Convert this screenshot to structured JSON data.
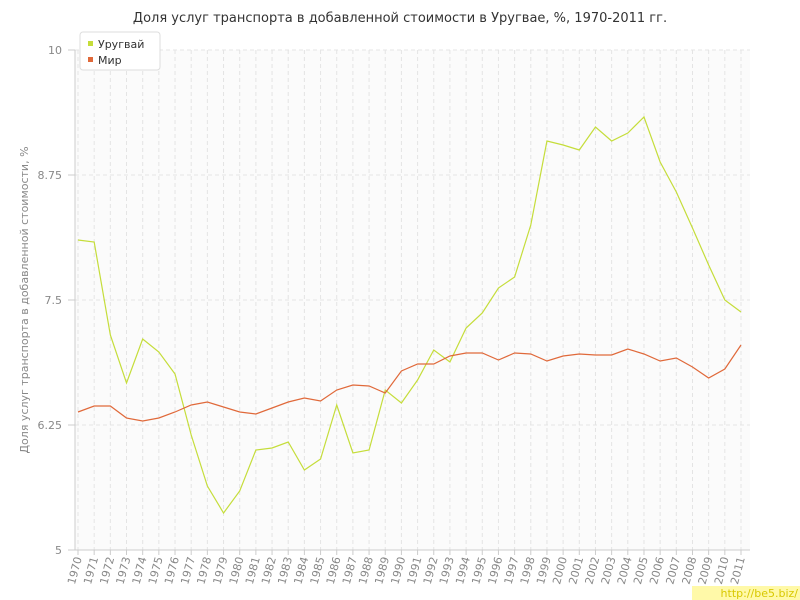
{
  "chart_data": {
    "type": "line",
    "title": "Доля услуг транспорта в добавленной стоимости в Уругвае, %, 1970-2011 гг.",
    "y_label": "Доля услуг транспорта в добавленной стоимости, %",
    "watermark": "http://be5.biz/",
    "categories": [
      "1970",
      "1971",
      "1972",
      "1973",
      "1974",
      "1975",
      "1976",
      "1977",
      "1978",
      "1979",
      "1980",
      "1981",
      "1982",
      "1983",
      "1984",
      "1985",
      "1986",
      "1987",
      "1988",
      "1989",
      "1990",
      "1991",
      "1992",
      "1993",
      "1994",
      "1995",
      "1996",
      "1997",
      "1998",
      "1999",
      "2000",
      "2001",
      "2002",
      "2003",
      "2004",
      "2005",
      "2006",
      "2007",
      "2008",
      "2009",
      "2010",
      "2011"
    ],
    "series": [
      {
        "name": "Уругвай",
        "color": "#c5dd3a",
        "values": [
          8.1,
          8.08,
          7.15,
          6.67,
          7.11,
          6.98,
          6.76,
          6.15,
          5.64,
          5.37,
          5.59,
          6.0,
          6.02,
          6.08,
          5.8,
          5.91,
          6.45,
          5.97,
          6.0,
          6.6,
          6.47,
          6.7,
          7.0,
          6.88,
          7.22,
          7.37,
          7.62,
          7.73,
          8.25,
          9.09,
          9.05,
          9.0,
          9.23,
          9.09,
          9.17,
          9.33,
          8.88,
          8.58,
          8.22,
          7.85,
          7.5,
          7.38
        ]
      },
      {
        "name": "Мир",
        "color": "#e0693a",
        "values": [
          6.38,
          6.44,
          6.44,
          6.32,
          6.29,
          6.32,
          6.38,
          6.45,
          6.48,
          6.43,
          6.38,
          6.36,
          6.42,
          6.48,
          6.52,
          6.49,
          6.6,
          6.65,
          6.64,
          6.57,
          6.79,
          6.86,
          6.86,
          6.94,
          6.97,
          6.97,
          6.9,
          6.97,
          6.96,
          6.89,
          6.94,
          6.96,
          6.95,
          6.95,
          7.01,
          6.96,
          6.89,
          6.92,
          6.83,
          6.72,
          6.81,
          7.05
        ]
      }
    ],
    "ylim": [
      5,
      10
    ],
    "yticks": [
      5,
      6.25,
      7.5,
      8.75,
      10
    ],
    "grid": true,
    "legend": "top-left"
  }
}
